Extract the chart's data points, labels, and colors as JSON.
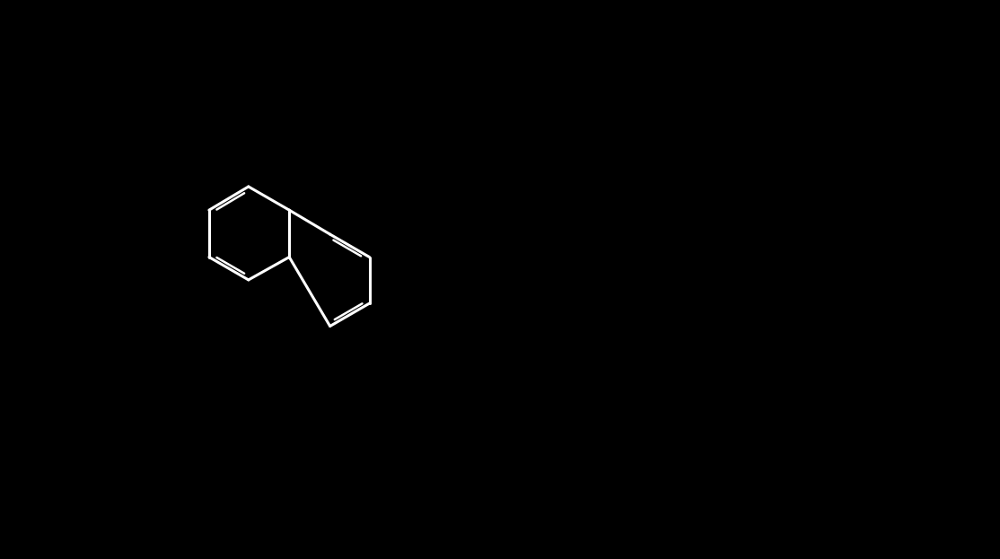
{
  "bg": "#000000",
  "white": "#ffffff",
  "blue": "#0000ff",
  "red": "#ff0000",
  "green": "#00aa00",
  "lw": 2.2,
  "lw2": 1.8,
  "fs": 16,
  "fs_sm": 14
}
